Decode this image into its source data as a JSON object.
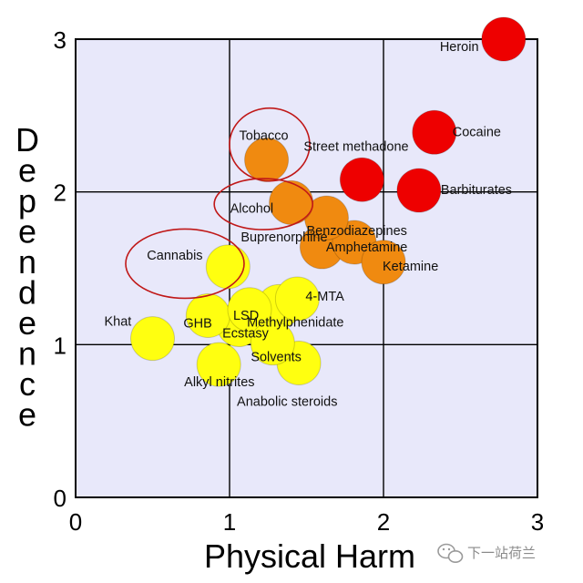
{
  "chart_data": {
    "type": "scatter",
    "xlabel": "Physical Harm",
    "ylabel": "Dependence",
    "xlim": [
      0,
      3
    ],
    "ylim": [
      0,
      3
    ],
    "x_ticks": [
      "0",
      "1",
      "2",
      "3"
    ],
    "y_ticks": [
      "0",
      "1",
      "2",
      "3"
    ],
    "grid": true,
    "colors": {
      "plot_bg": "#e8e8fa",
      "grid": "#000000",
      "circle_outline": "#c01818",
      "red": "#ee0000",
      "orange": "#f08a10",
      "yellow": "#ffff10"
    },
    "points": [
      {
        "label": "Heroin",
        "x": 2.78,
        "y": 3.0,
        "color": "red"
      },
      {
        "label": "Cocaine",
        "x": 2.33,
        "y": 2.39,
        "color": "red"
      },
      {
        "label": "Barbiturates",
        "x": 2.23,
        "y": 2.01,
        "color": "red"
      },
      {
        "label": "Street methadone",
        "x": 1.86,
        "y": 2.08,
        "color": "red"
      },
      {
        "label": "Alcohol",
        "x": 1.4,
        "y": 1.93,
        "color": "orange"
      },
      {
        "label": "Ketamine",
        "x": 2.0,
        "y": 1.54,
        "color": "orange"
      },
      {
        "label": "Benzodiazepines",
        "x": 1.63,
        "y": 1.83,
        "color": "orange"
      },
      {
        "label": "Amphetamine",
        "x": 1.81,
        "y": 1.67,
        "color": "orange"
      },
      {
        "label": "Tobacco",
        "x": 1.24,
        "y": 2.21,
        "color": "orange"
      },
      {
        "label": "Buprenorphine",
        "x": 1.6,
        "y": 1.64,
        "color": "orange"
      },
      {
        "label": "Cannabis",
        "x": 0.99,
        "y": 1.51,
        "color": "yellow"
      },
      {
        "label": "Solvents",
        "x": 1.28,
        "y": 1.01,
        "color": "yellow"
      },
      {
        "label": "4-MTA",
        "x": 1.44,
        "y": 1.3,
        "color": "yellow"
      },
      {
        "label": "LSD",
        "x": 1.13,
        "y": 1.23,
        "color": "yellow"
      },
      {
        "label": "Methylphenidate",
        "x": 1.32,
        "y": 1.25,
        "color": "yellow"
      },
      {
        "label": "Anabolic steroids",
        "x": 1.45,
        "y": 0.88,
        "color": "yellow"
      },
      {
        "label": "GHB",
        "x": 0.86,
        "y": 1.19,
        "color": "yellow"
      },
      {
        "label": "Ecstasy",
        "x": 1.06,
        "y": 1.13,
        "color": "yellow"
      },
      {
        "label": "Alkyl nitrites",
        "x": 0.93,
        "y": 0.87,
        "color": "yellow"
      },
      {
        "label": "Khat",
        "x": 0.5,
        "y": 1.04,
        "color": "yellow"
      }
    ],
    "highlighted": [
      "Tobacco",
      "Alcohol",
      "Cannabis"
    ]
  },
  "watermark": {
    "text": "下一站荷兰"
  }
}
